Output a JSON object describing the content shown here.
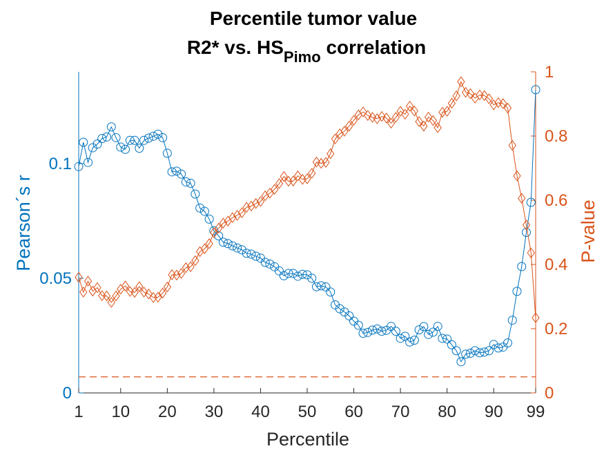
{
  "chart_data": {
    "type": "line",
    "title_line1": "Percentile tumor value",
    "title_line2_main": "R2* vs. HS",
    "title_line2_sub": "Pimo",
    "title_line2_end": " correlation",
    "xlabel": "Percentile",
    "ylabel_left": "Pearson´s r",
    "ylabel_right": "P-value",
    "xlim": [
      1,
      99
    ],
    "ylim_left": [
      0,
      0.14
    ],
    "ylim_right": [
      0,
      1
    ],
    "x_ticks": [
      1,
      10,
      20,
      30,
      40,
      50,
      60,
      70,
      80,
      90,
      99
    ],
    "y_left_ticks": [
      0,
      0.05,
      0.1
    ],
    "y_left_tick_labels": [
      "0",
      "0.05",
      "0.1"
    ],
    "y_right_ticks": [
      0,
      0.2,
      0.4,
      0.6,
      0.8,
      1
    ],
    "y_right_tick_labels": [
      "0",
      "0.2",
      "0.4",
      "0.6",
      "0.8",
      "1"
    ],
    "colors": {
      "left": "#0072BD",
      "right": "#D95319"
    },
    "threshold_line": {
      "y": 0.05,
      "axis": "right",
      "style": "dashed"
    },
    "series": [
      {
        "name": "Pearson´s r",
        "axis": "left",
        "marker": "circle",
        "x": [
          1,
          2,
          3,
          4,
          5,
          6,
          7,
          8,
          9,
          10,
          11,
          12,
          13,
          14,
          15,
          16,
          17,
          18,
          19,
          20,
          21,
          22,
          23,
          24,
          25,
          26,
          27,
          28,
          29,
          30,
          31,
          32,
          33,
          34,
          35,
          36,
          37,
          38,
          39,
          40,
          41,
          42,
          43,
          44,
          45,
          46,
          47,
          48,
          49,
          50,
          51,
          52,
          53,
          54,
          55,
          56,
          57,
          58,
          59,
          60,
          61,
          62,
          63,
          64,
          65,
          66,
          67,
          68,
          69,
          70,
          71,
          72,
          73,
          74,
          75,
          76,
          77,
          78,
          79,
          80,
          81,
          82,
          83,
          84,
          85,
          86,
          87,
          88,
          89,
          90,
          91,
          92,
          93,
          94,
          95,
          96,
          97,
          98,
          99
        ],
        "values": [
          0.0987,
          0.1093,
          0.1005,
          0.1069,
          0.1085,
          0.1109,
          0.1116,
          0.116,
          0.1113,
          0.1072,
          0.1062,
          0.1101,
          0.1101,
          0.1067,
          0.1101,
          0.1111,
          0.1119,
          0.1128,
          0.1113,
          0.1045,
          0.0964,
          0.0967,
          0.0954,
          0.092,
          0.0914,
          0.0867,
          0.0806,
          0.0792,
          0.0758,
          0.0707,
          0.0685,
          0.0657,
          0.0651,
          0.0641,
          0.0632,
          0.0624,
          0.0609,
          0.0605,
          0.0596,
          0.0588,
          0.0569,
          0.0562,
          0.055,
          0.0532,
          0.0511,
          0.0521,
          0.0521,
          0.0509,
          0.0517,
          0.0515,
          0.05,
          0.0463,
          0.0467,
          0.0462,
          0.044,
          0.0384,
          0.0367,
          0.0353,
          0.0336,
          0.0313,
          0.0295,
          0.026,
          0.0264,
          0.0274,
          0.0279,
          0.0269,
          0.0273,
          0.029,
          0.0269,
          0.0238,
          0.0247,
          0.0222,
          0.023,
          0.0275,
          0.0289,
          0.0255,
          0.0265,
          0.029,
          0.0238,
          0.0235,
          0.021,
          0.0184,
          0.0136,
          0.0169,
          0.0173,
          0.0184,
          0.0175,
          0.0178,
          0.0184,
          0.0211,
          0.0196,
          0.02,
          0.0218,
          0.0317,
          0.0443,
          0.0551,
          0.07,
          0.0831,
          0.1322
        ]
      },
      {
        "name": "P-value",
        "axis": "right",
        "marker": "diamond",
        "x": [
          1,
          2,
          3,
          4,
          5,
          6,
          7,
          8,
          9,
          10,
          11,
          12,
          13,
          14,
          15,
          16,
          17,
          18,
          19,
          20,
          21,
          22,
          23,
          24,
          25,
          26,
          27,
          28,
          29,
          30,
          31,
          32,
          33,
          34,
          35,
          36,
          37,
          38,
          39,
          40,
          41,
          42,
          43,
          44,
          45,
          46,
          47,
          48,
          49,
          50,
          51,
          52,
          53,
          54,
          55,
          56,
          57,
          58,
          59,
          60,
          61,
          62,
          63,
          64,
          65,
          66,
          67,
          68,
          69,
          70,
          71,
          72,
          73,
          74,
          75,
          76,
          77,
          78,
          79,
          80,
          81,
          82,
          83,
          84,
          85,
          86,
          87,
          88,
          89,
          90,
          91,
          92,
          93,
          94,
          95,
          96,
          97,
          98,
          99
        ],
        "values": [
          0.36,
          0.314,
          0.348,
          0.317,
          0.328,
          0.303,
          0.302,
          0.282,
          0.302,
          0.323,
          0.333,
          0.316,
          0.313,
          0.331,
          0.314,
          0.308,
          0.297,
          0.298,
          0.311,
          0.33,
          0.368,
          0.367,
          0.372,
          0.39,
          0.393,
          0.412,
          0.44,
          0.449,
          0.465,
          0.499,
          0.513,
          0.529,
          0.535,
          0.546,
          0.553,
          0.561,
          0.578,
          0.582,
          0.59,
          0.596,
          0.614,
          0.622,
          0.634,
          0.652,
          0.674,
          0.659,
          0.66,
          0.676,
          0.665,
          0.667,
          0.684,
          0.719,
          0.715,
          0.718,
          0.745,
          0.791,
          0.807,
          0.815,
          0.831,
          0.849,
          0.866,
          0.875,
          0.864,
          0.858,
          0.854,
          0.861,
          0.856,
          0.84,
          0.858,
          0.877,
          0.868,
          0.893,
          0.878,
          0.845,
          0.831,
          0.859,
          0.848,
          0.826,
          0.874,
          0.877,
          0.902,
          0.925,
          0.969,
          0.936,
          0.932,
          0.918,
          0.928,
          0.926,
          0.916,
          0.897,
          0.904,
          0.901,
          0.887,
          0.771,
          0.676,
          0.606,
          0.523,
          0.436,
          0.234
        ]
      }
    ]
  }
}
